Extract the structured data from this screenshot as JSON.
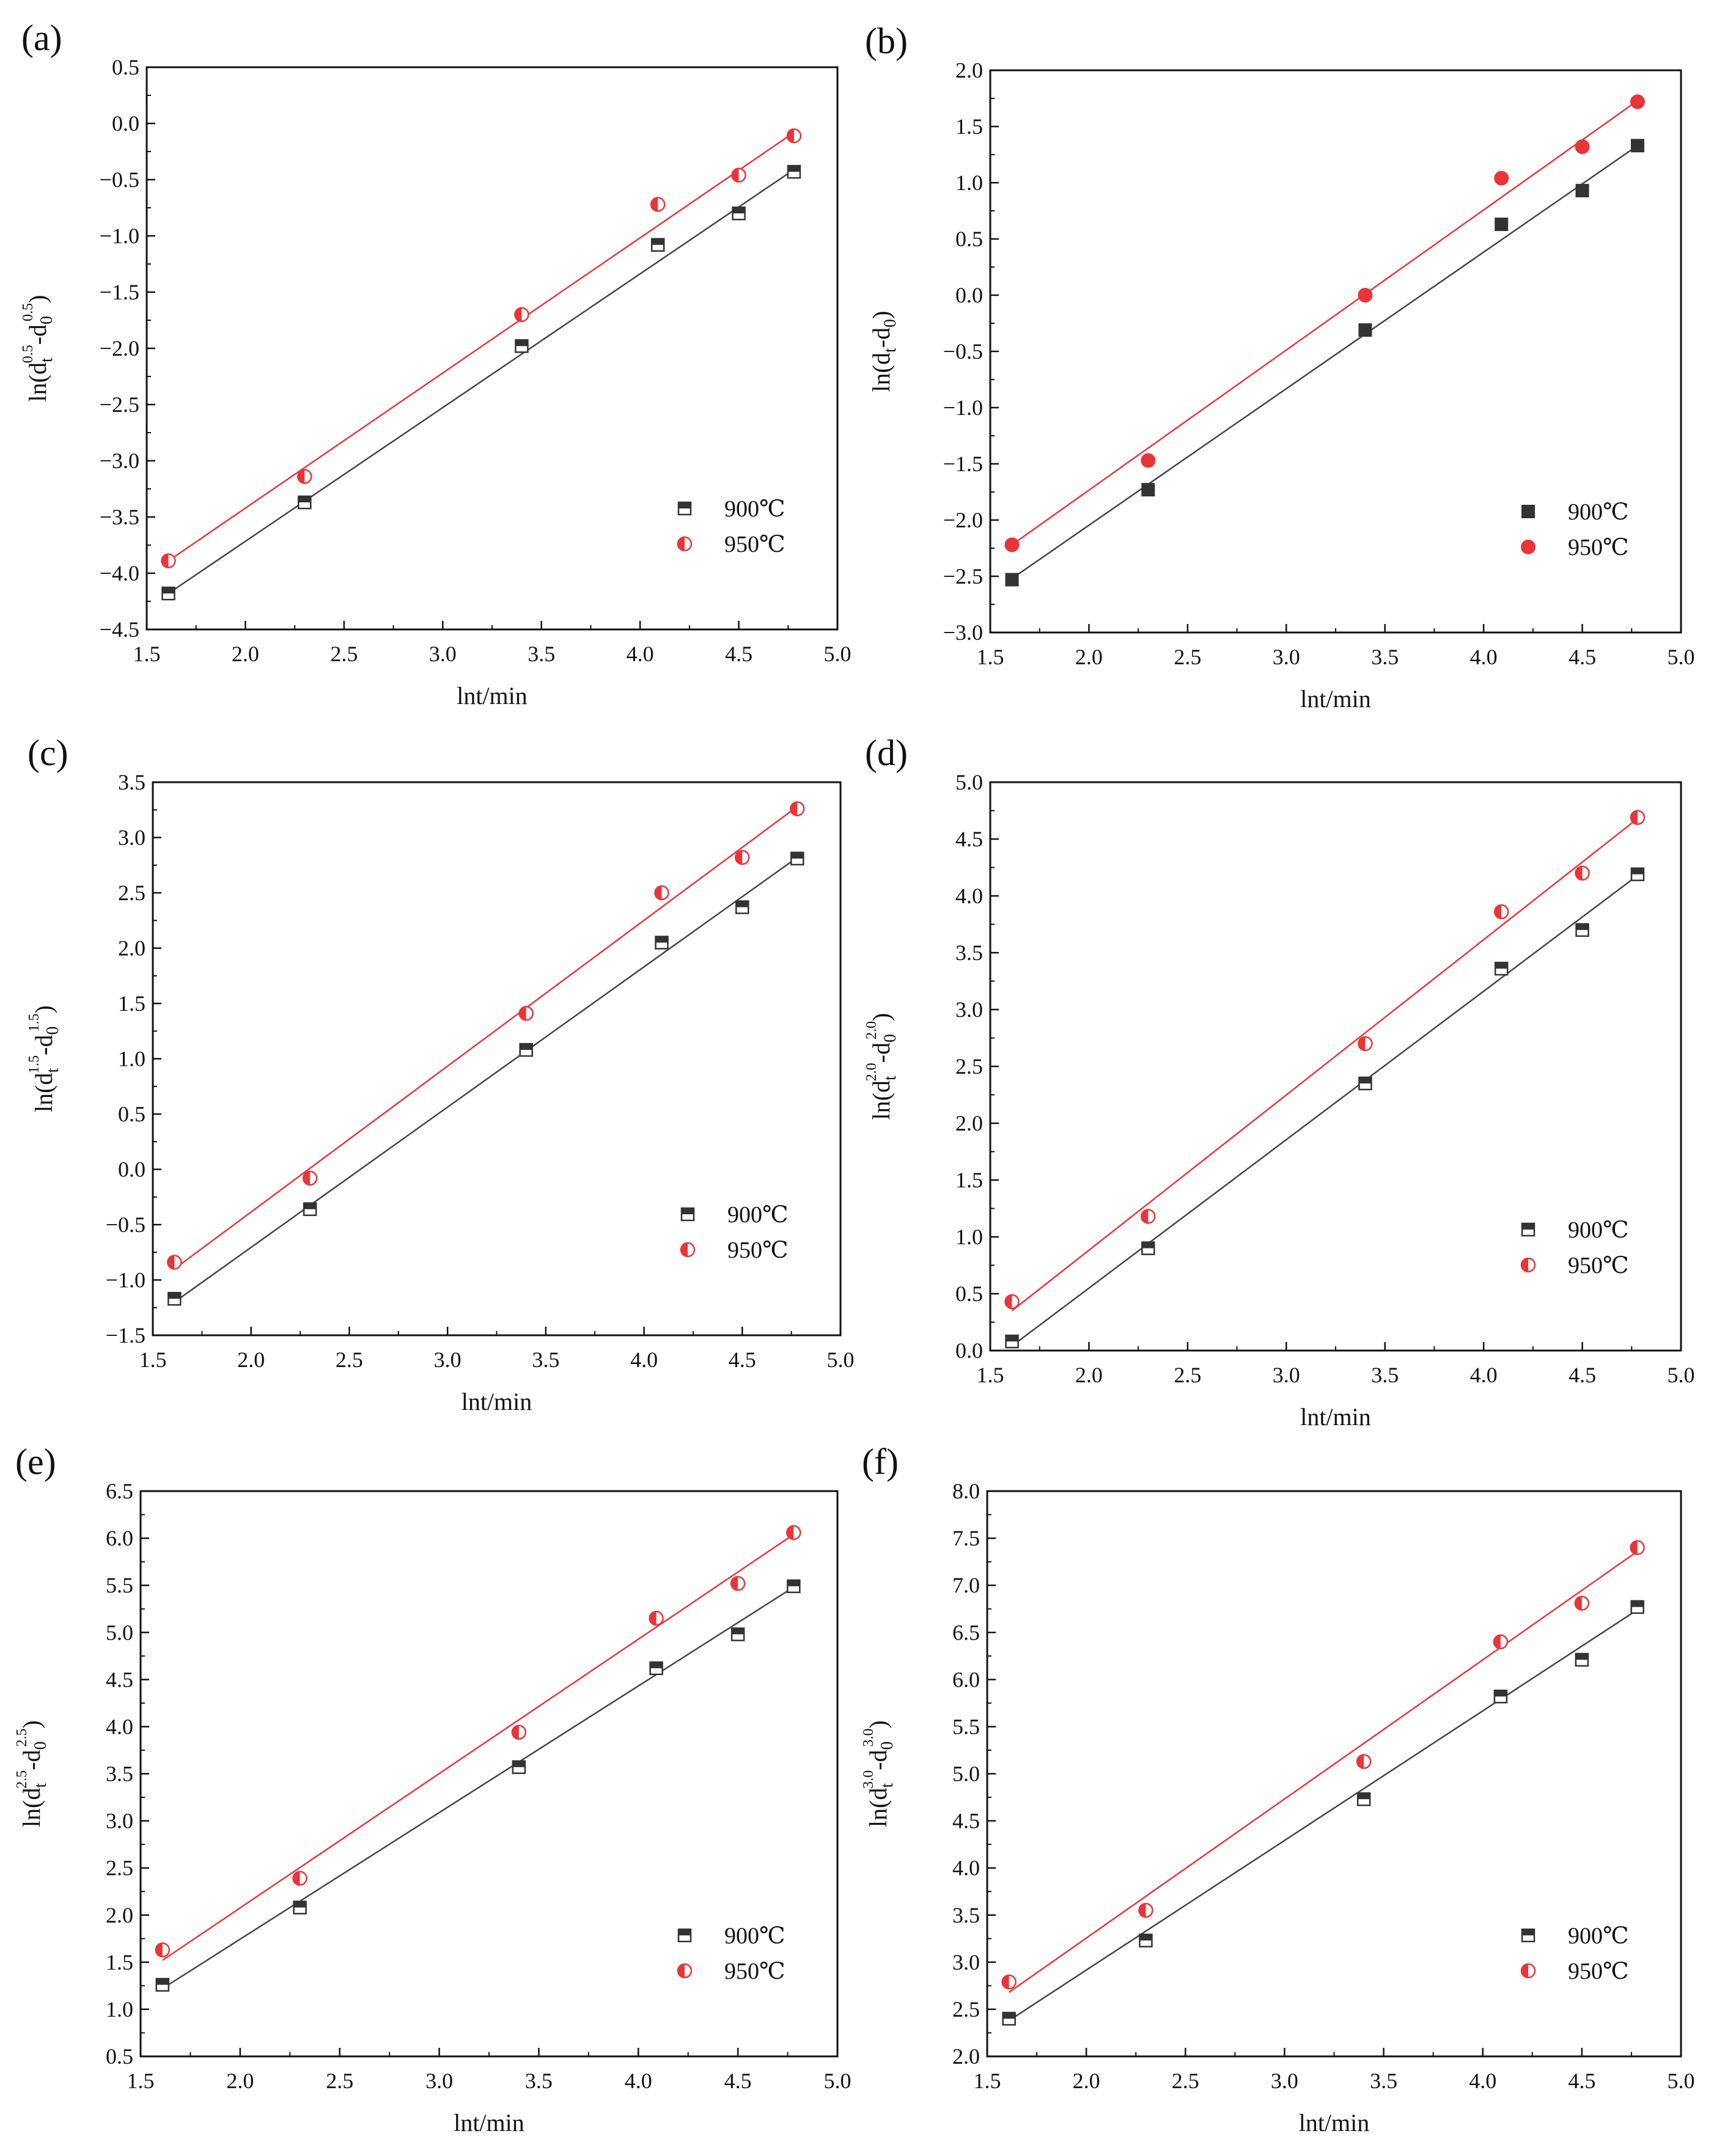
{
  "colors": {
    "s900": "#333333",
    "s950": "#e8353a",
    "fit900": "#444444",
    "fit950": "#e8353a",
    "axis": "#111111"
  },
  "chart_data": [
    {
      "type": "scatter",
      "panel_label": "(a)",
      "xlabel": "lnt/min",
      "ylabel": {
        "base": "ln(d",
        "sub1": "t",
        "sup1": "0.5",
        "mid": "-d",
        "sub2": "0",
        "sup2": "0.5",
        "end": ")"
      },
      "xlim": [
        1.5,
        5.0
      ],
      "ylim": [
        -4.5,
        0.5
      ],
      "xticks": [
        "1.5",
        "2.0",
        "2.5",
        "3.0",
        "3.5",
        "4.0",
        "4.5",
        "5.0"
      ],
      "yticks": [
        "−4.5",
        "−4.0",
        "−3.5",
        "−3.0",
        "−2.5",
        "−2.0",
        "−1.5",
        "−1.0",
        "−0.5",
        "0.0",
        "0.5"
      ],
      "legend_position": "lower-right",
      "marker_style": "half",
      "series": [
        {
          "name": "900℃",
          "marker": "square",
          "x": [
            1.61,
            2.3,
            3.4,
            4.09,
            4.5,
            4.78
          ],
          "y": [
            -4.18,
            -3.37,
            -1.98,
            -1.08,
            -0.8,
            -0.43
          ],
          "fit": [
            [
              1.61,
              -4.18
            ],
            [
              4.78,
              -0.41
            ]
          ]
        },
        {
          "name": "950℃",
          "marker": "circle",
          "x": [
            1.61,
            2.3,
            3.4,
            4.09,
            4.5,
            4.78
          ],
          "y": [
            -3.89,
            -3.14,
            -1.7,
            -0.72,
            -0.46,
            -0.11
          ],
          "fit": [
            [
              1.61,
              -3.89
            ],
            [
              4.78,
              -0.08
            ]
          ]
        }
      ]
    },
    {
      "type": "scatter",
      "panel_label": "(b)",
      "xlabel": "lnt/min",
      "ylabel": {
        "base": "ln(d",
        "sub1": "t",
        "sup1": "",
        "mid": "-d",
        "sub2": "0",
        "sup2": "",
        "end": ")"
      },
      "xlim": [
        1.5,
        5.0
      ],
      "ylim": [
        -3.0,
        2.0
      ],
      "xticks": [
        "1.5",
        "2.0",
        "2.5",
        "3.0",
        "3.5",
        "4.0",
        "4.5",
        "5.0"
      ],
      "yticks": [
        "−3.0",
        "−2.5",
        "−2.0",
        "−1.5",
        "−1.0",
        "−0.5",
        "0.0",
        "0.5",
        "1.0",
        "1.5",
        "2.0"
      ],
      "legend_position": "lower-right",
      "marker_style": "filled",
      "series": [
        {
          "name": "900℃",
          "marker": "square",
          "x": [
            1.61,
            2.3,
            3.4,
            4.09,
            4.5,
            4.78
          ],
          "y": [
            -2.53,
            -1.73,
            -0.31,
            0.63,
            0.93,
            1.33
          ],
          "fit": [
            [
              1.61,
              -2.52
            ],
            [
              4.78,
              1.33
            ]
          ]
        },
        {
          "name": "950℃",
          "marker": "circle",
          "x": [
            1.61,
            2.3,
            3.4,
            4.09,
            4.5,
            4.78
          ],
          "y": [
            -2.22,
            -1.47,
            0.0,
            1.04,
            1.32,
            1.72
          ],
          "fit": [
            [
              1.61,
              -2.22
            ],
            [
              4.78,
              1.73
            ]
          ]
        }
      ]
    },
    {
      "type": "scatter",
      "panel_label": "(c)",
      "xlabel": "lnt/min",
      "ylabel": {
        "base": "ln(d",
        "sub1": "t",
        "sup1": "1.5",
        "mid": "-d",
        "sub2": "0",
        "sup2": "1.5",
        "end": ")"
      },
      "xlim": [
        1.5,
        5.0
      ],
      "ylim": [
        -1.5,
        3.5
      ],
      "xticks": [
        "1.5",
        "2.0",
        "2.5",
        "3.0",
        "3.5",
        "4.0",
        "4.5",
        "5.0"
      ],
      "yticks": [
        "−1.5",
        "−1.0",
        "−0.5",
        "0.0",
        "0.5",
        "1.0",
        "1.5",
        "2.0",
        "2.5",
        "3.0",
        "3.5"
      ],
      "legend_position": "lower-right",
      "marker_style": "half",
      "series": [
        {
          "name": "900℃",
          "marker": "square",
          "x": [
            1.61,
            2.3,
            3.4,
            4.09,
            4.5,
            4.78
          ],
          "y": [
            -1.17,
            -0.36,
            1.08,
            2.05,
            2.37,
            2.81
          ],
          "fit": [
            [
              1.61,
              -1.2
            ],
            [
              4.78,
              2.82
            ]
          ]
        },
        {
          "name": "950℃",
          "marker": "circle",
          "x": [
            1.61,
            2.3,
            3.4,
            4.09,
            4.5,
            4.78
          ],
          "y": [
            -0.84,
            -0.08,
            1.41,
            2.5,
            2.82,
            3.26
          ],
          "fit": [
            [
              1.61,
              -0.9
            ],
            [
              4.78,
              3.28
            ]
          ]
        }
      ]
    },
    {
      "type": "scatter",
      "panel_label": "(d)",
      "xlabel": "lnt/min",
      "ylabel": {
        "base": "ln(d",
        "sub1": "t",
        "sup1": "2.0",
        "mid": "-d",
        "sub2": "0",
        "sup2": "2.0",
        "end": ")"
      },
      "xlim": [
        1.5,
        5.0
      ],
      "ylim": [
        0.0,
        5.0
      ],
      "xticks": [
        "1.5",
        "2.0",
        "2.5",
        "3.0",
        "3.5",
        "4.0",
        "4.5",
        "5.0"
      ],
      "yticks": [
        "0.0",
        "0.5",
        "1.0",
        "1.5",
        "2.0",
        "2.5",
        "3.0",
        "3.5",
        "4.0",
        "4.5",
        "5.0"
      ],
      "legend_position": "lower-right",
      "marker_style": "half",
      "series": [
        {
          "name": "900℃",
          "marker": "square",
          "x": [
            1.61,
            2.3,
            3.4,
            4.09,
            4.5,
            4.78
          ],
          "y": [
            0.08,
            0.9,
            2.35,
            3.36,
            3.7,
            4.19
          ],
          "fit": [
            [
              1.61,
              0.04
            ],
            [
              4.78,
              4.18
            ]
          ]
        },
        {
          "name": "950℃",
          "marker": "circle",
          "x": [
            1.61,
            2.3,
            3.4,
            4.09,
            4.5,
            4.78
          ],
          "y": [
            0.43,
            1.18,
            2.7,
            3.86,
            4.2,
            4.69
          ],
          "fit": [
            [
              1.61,
              0.35
            ],
            [
              4.78,
              4.68
            ]
          ]
        }
      ]
    },
    {
      "type": "scatter",
      "panel_label": "(e)",
      "xlabel": "lnt/min",
      "ylabel": {
        "base": "ln(d",
        "sub1": "t",
        "sup1": "2.5",
        "mid": "-d",
        "sub2": "0",
        "sup2": "2.5",
        "end": ")"
      },
      "xlim": [
        1.5,
        5.0
      ],
      "ylim": [
        0.5,
        6.5
      ],
      "xticks": [
        "1.5",
        "2.0",
        "2.5",
        "3.0",
        "3.5",
        "4.0",
        "4.5",
        "5.0"
      ],
      "yticks": [
        "0.5",
        "1.0",
        "1.5",
        "2.0",
        "2.5",
        "3.0",
        "3.5",
        "4.0",
        "4.5",
        "5.0",
        "5.5",
        "6.0",
        "6.5"
      ],
      "legend_position": "lower-right",
      "marker_style": "half",
      "series": [
        {
          "name": "900℃",
          "marker": "square",
          "x": [
            1.61,
            2.3,
            3.4,
            4.09,
            4.5,
            4.78
          ],
          "y": [
            1.26,
            2.08,
            3.57,
            4.62,
            4.98,
            5.49
          ],
          "fit": [
            [
              1.61,
              1.22
            ],
            [
              4.78,
              5.48
            ]
          ]
        },
        {
          "name": "950℃",
          "marker": "circle",
          "x": [
            1.61,
            2.3,
            3.4,
            4.09,
            4.5,
            4.78
          ],
          "y": [
            1.63,
            2.39,
            3.94,
            5.15,
            5.52,
            6.06
          ],
          "fit": [
            [
              1.61,
              1.52
            ],
            [
              4.78,
              6.04
            ]
          ]
        }
      ]
    },
    {
      "type": "scatter",
      "panel_label": "(f)",
      "xlabel": "lnt/min",
      "ylabel": {
        "base": "ln(d",
        "sub1": "t",
        "sup1": "3.0",
        "mid": "-d",
        "sub2": "0",
        "sup2": "3.0",
        "end": ")"
      },
      "xlim": [
        1.5,
        5.0
      ],
      "ylim": [
        2.0,
        8.0
      ],
      "xticks": [
        "1.5",
        "2.0",
        "2.5",
        "3.0",
        "3.5",
        "4.0",
        "4.5",
        "5.0"
      ],
      "yticks": [
        "2.0",
        "2.5",
        "3.0",
        "3.5",
        "4.0",
        "4.5",
        "5.0",
        "5.5",
        "6.0",
        "6.5",
        "7.0",
        "7.5",
        "8.0"
      ],
      "legend_position": "lower-right",
      "marker_style": "half",
      "series": [
        {
          "name": "900℃",
          "marker": "square",
          "x": [
            1.61,
            2.3,
            3.4,
            4.09,
            4.5,
            4.78
          ],
          "y": [
            2.4,
            3.23,
            4.73,
            5.82,
            6.21,
            6.77
          ],
          "fit": [
            [
              1.61,
              2.38
            ],
            [
              4.78,
              6.74
            ]
          ]
        },
        {
          "name": "950℃",
          "marker": "circle",
          "x": [
            1.61,
            2.3,
            3.4,
            4.09,
            4.5,
            4.78
          ],
          "y": [
            2.79,
            3.55,
            5.13,
            6.4,
            6.81,
            7.4
          ],
          "fit": [
            [
              1.61,
              2.68
            ],
            [
              4.78,
              7.36
            ]
          ]
        }
      ]
    }
  ]
}
